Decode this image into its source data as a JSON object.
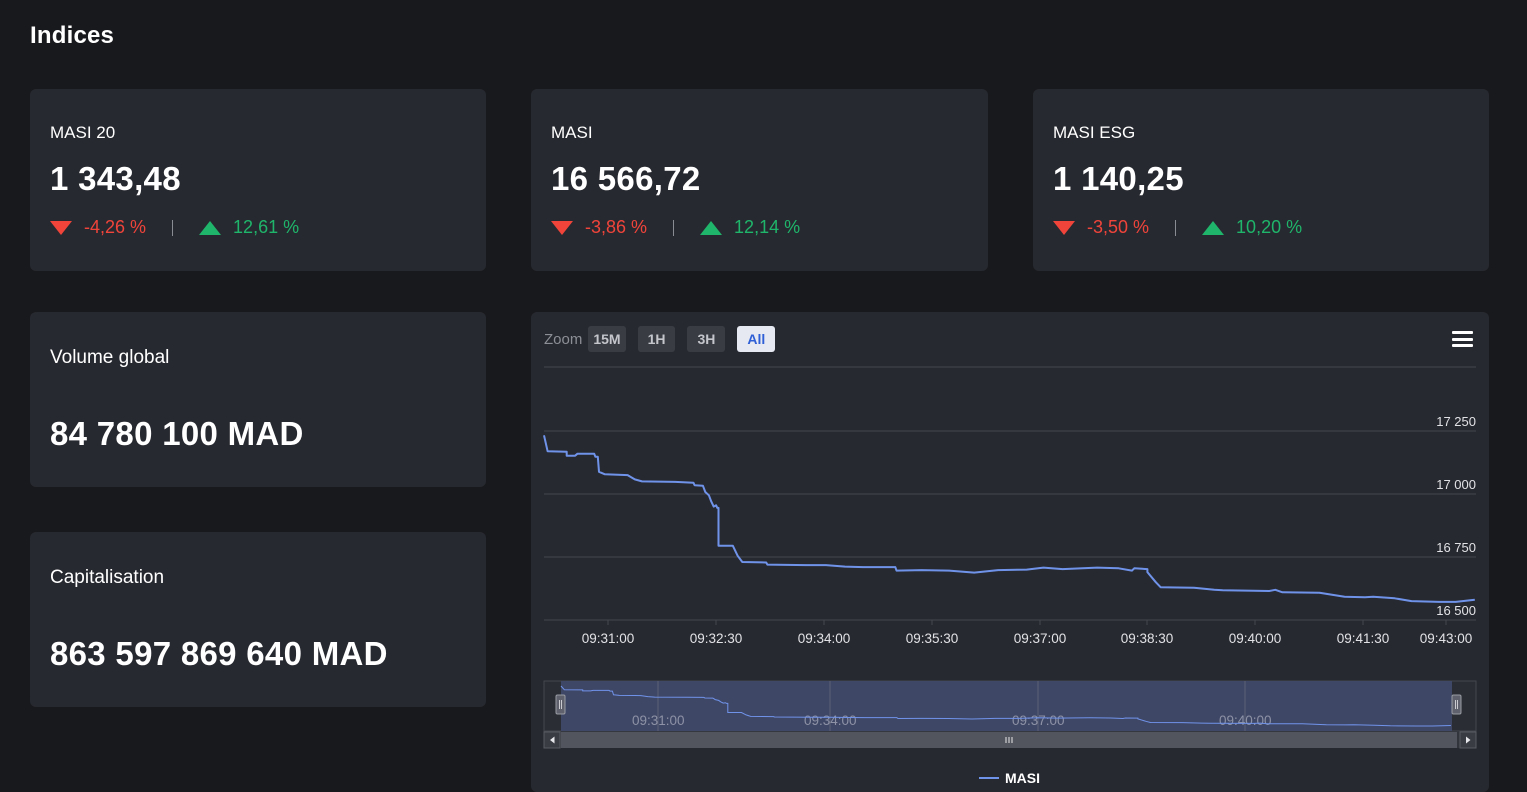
{
  "page": {
    "title": "Indices"
  },
  "indices": [
    {
      "name": "MASI 20",
      "value": "1 343,48",
      "change_down": "-4,26 %",
      "change_up": "12,61 %"
    },
    {
      "name": "MASI",
      "value": "16 566,72",
      "change_down": "-3,86 %",
      "change_up": "12,14 %"
    },
    {
      "name": "MASI ESG",
      "value": "1 140,25",
      "change_down": "-3,50 %",
      "change_up": "10,20 %"
    }
  ],
  "stats": {
    "volume": {
      "label": "Volume global",
      "value": "84 780 100 MAD"
    },
    "capitalisation": {
      "label": "Capitalisation",
      "value": "863 597 869 640 MAD"
    }
  },
  "chart": {
    "zoom_label": "Zoom",
    "zoom_buttons": [
      "15M",
      "1H",
      "3H",
      "All"
    ],
    "active_zoom": "All",
    "menu_icon": "hamburger-icon",
    "navigator_handle_icon": "grip-lines-icon",
    "scroll_left_icon": "arrow-left-icon",
    "scroll_right_icon": "arrow-right-icon",
    "colors": {
      "line": "#7093ea",
      "navigator_mask": "#414a6c"
    }
  },
  "chart_data": {
    "type": "line",
    "title": "",
    "xlabel": "",
    "ylabel": "",
    "x_tick_labels": [
      "09:31:00",
      "09:32:30",
      "09:34:00",
      "09:35:30",
      "09:37:00",
      "09:38:30",
      "09:40:00",
      "09:41:30",
      "09:43:00"
    ],
    "y_tick_values": [
      16500,
      16750,
      17000,
      17250
    ],
    "y_tick_labels": [
      "16 500",
      "16 750",
      "17 000",
      "17 250"
    ],
    "ylim": [
      16500,
      17250
    ],
    "xlim": [
      "09:30:06",
      "09:43:06"
    ],
    "navigator_tick_labels": [
      "09:31:00",
      "09:34:00",
      "09:37:00",
      "09:40:00"
    ],
    "grid": true,
    "legend_position": "bottom-center",
    "series": [
      {
        "name": "MASI",
        "points": [
          [
            "09:30:06",
            17233
          ],
          [
            "09:30:09",
            17170
          ],
          [
            "09:30:25",
            17168
          ],
          [
            "09:30:25",
            17152
          ],
          [
            "09:30:32",
            17152
          ],
          [
            "09:30:34",
            17160
          ],
          [
            "09:30:48",
            17160
          ],
          [
            "09:30:49",
            17148
          ],
          [
            "09:30:51",
            17148
          ],
          [
            "09:30:52",
            17088
          ],
          [
            "09:30:57",
            17078
          ],
          [
            "09:31:16",
            17075
          ],
          [
            "09:31:22",
            17058
          ],
          [
            "09:31:28",
            17050
          ],
          [
            "09:31:56",
            17048
          ],
          [
            "09:32:11",
            17045
          ],
          [
            "09:32:12",
            17035
          ],
          [
            "09:32:19",
            17033
          ],
          [
            "09:32:21",
            17008
          ],
          [
            "09:32:24",
            16995
          ],
          [
            "09:32:26",
            16970
          ],
          [
            "09:32:28",
            16950
          ],
          [
            "09:32:30",
            16955
          ],
          [
            "09:32:31",
            16945
          ],
          [
            "09:32:32",
            16945
          ],
          [
            "09:32:32",
            16795
          ],
          [
            "09:32:44",
            16795
          ],
          [
            "09:32:48",
            16755
          ],
          [
            "09:32:52",
            16730
          ],
          [
            "09:33:12",
            16728
          ],
          [
            "09:33:13",
            16720
          ],
          [
            "09:33:45",
            16718
          ],
          [
            "09:34:02",
            16718
          ],
          [
            "09:34:18",
            16712
          ],
          [
            "09:34:33",
            16710
          ],
          [
            "09:35:00",
            16710
          ],
          [
            "09:35:01",
            16696
          ],
          [
            "09:35:22",
            16698
          ],
          [
            "09:35:45",
            16696
          ],
          [
            "09:36:06",
            16688
          ],
          [
            "09:36:26",
            16698
          ],
          [
            "09:36:50",
            16700
          ],
          [
            "09:37:04",
            16708
          ],
          [
            "09:37:20",
            16702
          ],
          [
            "09:37:49",
            16708
          ],
          [
            "09:38:07",
            16705
          ],
          [
            "09:38:18",
            16696
          ],
          [
            "09:38:20",
            16705
          ],
          [
            "09:38:31",
            16702
          ],
          [
            "09:38:31",
            16690
          ],
          [
            "09:38:38",
            16650
          ],
          [
            "09:38:42",
            16630
          ],
          [
            "09:39:10",
            16628
          ],
          [
            "09:39:27",
            16620
          ],
          [
            "09:39:34",
            16618
          ],
          [
            "09:40:13",
            16615
          ],
          [
            "09:40:18",
            16620
          ],
          [
            "09:40:24",
            16610
          ],
          [
            "09:40:55",
            16608
          ],
          [
            "09:41:16",
            16592
          ],
          [
            "09:41:33",
            16590
          ],
          [
            "09:41:40",
            16592
          ],
          [
            "09:41:58",
            16586
          ],
          [
            "09:42:12",
            16575
          ],
          [
            "09:42:35",
            16572
          ],
          [
            "09:42:49",
            16572
          ],
          [
            "09:43:05",
            16580
          ]
        ]
      }
    ]
  }
}
